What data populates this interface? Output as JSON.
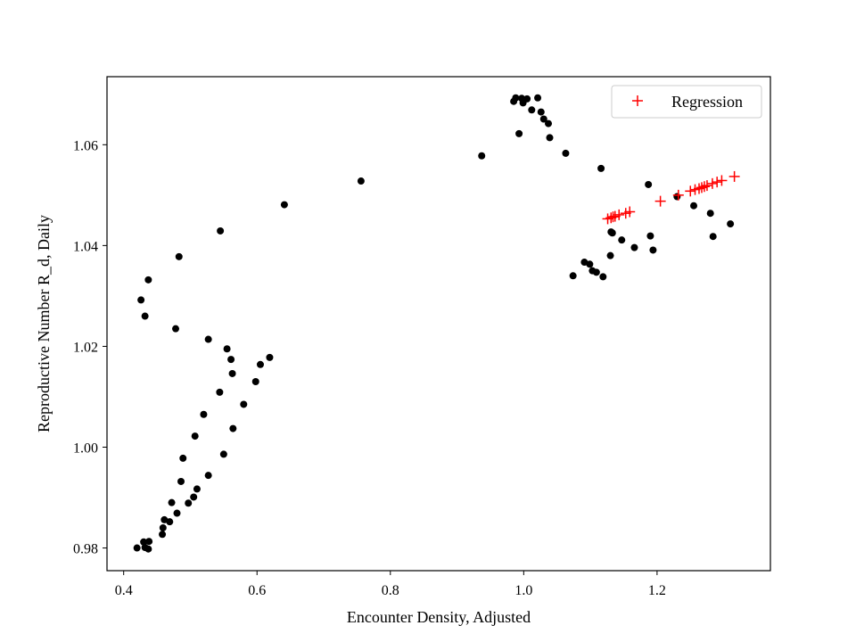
{
  "chart_data": {
    "type": "scatter",
    "title": "",
    "xlabel": "Encounter Density, Adjusted",
    "ylabel": "Reproductive Number R_d, Daily",
    "xlim": [
      0.375,
      1.37
    ],
    "ylim": [
      0.9755,
      1.0735
    ],
    "xticks": [
      0.4,
      0.6,
      0.8,
      1.0,
      1.2
    ],
    "xtick_labels": [
      "0.4",
      "0.6",
      "0.8",
      "1.0",
      "1.2"
    ],
    "yticks": [
      0.98,
      1.0,
      1.02,
      1.04,
      1.06
    ],
    "ytick_labels": [
      "0.98",
      "1.00",
      "1.02",
      "1.04",
      "1.06"
    ],
    "grid": false,
    "legend_position": "top-right",
    "colors": {
      "data": "#000000",
      "regression": "#ff0000"
    },
    "series": [
      {
        "marker": "dot",
        "points": [
          [
            0.42,
            0.98
          ],
          [
            0.43,
            0.9812
          ],
          [
            0.432,
            0.9801
          ],
          [
            0.437,
            0.9798
          ],
          [
            0.438,
            0.9813
          ],
          [
            0.458,
            0.9827
          ],
          [
            0.459,
            0.984
          ],
          [
            0.461,
            0.9856
          ],
          [
            0.469,
            0.9852
          ],
          [
            0.472,
            0.989
          ],
          [
            0.48,
            0.9869
          ],
          [
            0.486,
            0.9932
          ],
          [
            0.489,
            0.9978
          ],
          [
            0.497,
            0.9889
          ],
          [
            0.505,
            0.9901
          ],
          [
            0.507,
            1.0022
          ],
          [
            0.51,
            0.9917
          ],
          [
            0.52,
            1.0065
          ],
          [
            0.527,
            0.9944
          ],
          [
            0.527,
            1.0214
          ],
          [
            0.544,
            1.0109
          ],
          [
            0.55,
            0.9986
          ],
          [
            0.555,
            1.0195
          ],
          [
            0.561,
            1.0174
          ],
          [
            0.563,
            1.0146
          ],
          [
            0.564,
            1.0037
          ],
          [
            0.58,
            1.0085
          ],
          [
            0.598,
            1.013
          ],
          [
            0.605,
            1.0164
          ],
          [
            0.619,
            1.0178
          ],
          [
            0.426,
            1.0292
          ],
          [
            0.432,
            1.026
          ],
          [
            0.437,
            1.0332
          ],
          [
            0.478,
            1.0235
          ],
          [
            0.483,
            1.0378
          ],
          [
            0.545,
            1.0429
          ],
          [
            0.641,
            1.0481
          ],
          [
            0.756,
            1.0528
          ],
          [
            0.937,
            1.0578
          ],
          [
            0.985,
            1.0686
          ],
          [
            0.988,
            1.0693
          ],
          [
            0.993,
            1.0622
          ],
          [
            0.997,
            1.0692
          ],
          [
            0.999,
            1.0683
          ],
          [
            1.005,
            1.0691
          ],
          [
            1.012,
            1.0669
          ],
          [
            1.021,
            1.0693
          ],
          [
            1.026,
            1.0665
          ],
          [
            1.03,
            1.0651
          ],
          [
            1.037,
            1.0642
          ],
          [
            1.039,
            1.0614
          ],
          [
            1.063,
            1.0583
          ],
          [
            1.074,
            1.034
          ],
          [
            1.091,
            1.0367
          ],
          [
            1.099,
            1.0363
          ],
          [
            1.103,
            1.035
          ],
          [
            1.109,
            1.0347
          ],
          [
            1.116,
            1.0553
          ],
          [
            1.119,
            1.0338
          ],
          [
            1.13,
            1.038
          ],
          [
            1.131,
            1.0427
          ],
          [
            1.133,
            1.0425
          ],
          [
            1.147,
            1.0411
          ],
          [
            1.166,
            1.0396
          ],
          [
            1.187,
            1.0521
          ],
          [
            1.19,
            1.0419
          ],
          [
            1.194,
            1.0391
          ],
          [
            1.23,
            1.0497
          ],
          [
            1.255,
            1.0479
          ],
          [
            1.28,
            1.0464
          ],
          [
            1.284,
            1.0418
          ],
          [
            1.31,
            1.0443
          ]
        ]
      },
      {
        "name": "Regression",
        "marker": "plus",
        "points": [
          [
            1.126,
            1.0453
          ],
          [
            1.131,
            1.0455
          ],
          [
            1.134,
            1.0457
          ],
          [
            1.137,
            1.0458
          ],
          [
            1.143,
            1.0461
          ],
          [
            1.153,
            1.0464
          ],
          [
            1.159,
            1.0467
          ],
          [
            1.205,
            1.0488
          ],
          [
            1.232,
            1.05
          ],
          [
            1.25,
            1.0508
          ],
          [
            1.257,
            1.0511
          ],
          [
            1.263,
            1.0513
          ],
          [
            1.267,
            1.0515
          ],
          [
            1.271,
            1.0517
          ],
          [
            1.275,
            1.0519
          ],
          [
            1.283,
            1.0523
          ],
          [
            1.29,
            1.0526
          ],
          [
            1.297,
            1.0529
          ],
          [
            1.316,
            1.0537
          ]
        ]
      }
    ]
  }
}
